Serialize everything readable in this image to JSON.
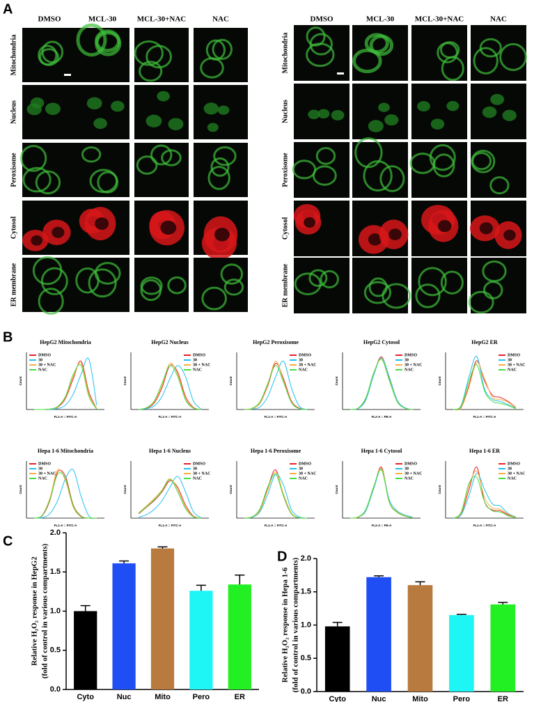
{
  "panel_labels": [
    "A",
    "B",
    "C",
    "D"
  ],
  "microscopy": [
    {
      "columns": [
        "DMSO",
        "MCL-30",
        "MCL-30+NAC",
        "NAC"
      ],
      "rows": [
        "Mitochondria",
        "Nucleus",
        "Peroxisome",
        "Cytosol",
        "ER membrane"
      ]
    },
    {
      "columns": [
        "DMSO",
        "MCL-30",
        "MCL-30+NAC",
        "NAC"
      ],
      "rows": [
        "Mitochondria",
        "Nucleus",
        "Peroxisome",
        "Cytosol",
        "ER membrane"
      ]
    }
  ],
  "chart_data": [
    {
      "type": "line",
      "title": "HepG2 Mitochondria",
      "xlabel": "FL1-A :: FITC-A",
      "ylabel": "Count",
      "legend": "upper left",
      "x": [
        2,
        2.5,
        3,
        3.5,
        4,
        4.5,
        5,
        5.5,
        6
      ],
      "xlim": [
        1.5,
        6.5
      ],
      "ylim": [
        0,
        130
      ],
      "series": [
        {
          "name": "DMSO",
          "color": "#e8202a",
          "values": [
            0,
            0,
            1,
            5,
            25,
            70,
            110,
            40,
            2
          ]
        },
        {
          "name": "30",
          "color": "#20c0f0",
          "values": [
            0,
            0,
            0,
            2,
            10,
            35,
            80,
            115,
            10
          ]
        },
        {
          "name": "30 + NAC",
          "color": "#f5b040",
          "values": [
            0,
            0,
            1,
            6,
            28,
            75,
            105,
            35,
            2
          ]
        },
        {
          "name": "NAC",
          "color": "#40e040",
          "values": [
            0,
            0,
            1,
            7,
            30,
            80,
            100,
            30,
            1
          ]
        }
      ]
    },
    {
      "type": "line",
      "title": "HepG2 Nucleus",
      "xlabel": "FL1-A :: FITC-A",
      "ylabel": "Count",
      "legend": "upper right",
      "x": [
        2,
        2.5,
        3,
        3.5,
        4,
        4.5,
        5,
        5.5,
        6
      ],
      "xlim": [
        1.5,
        6.5
      ],
      "ylim": [
        0,
        130
      ],
      "series": [
        {
          "name": "DMSO",
          "color": "#e8202a",
          "values": [
            0,
            3,
            15,
            50,
            100,
            85,
            30,
            5,
            0
          ]
        },
        {
          "name": "30",
          "color": "#20c0f0",
          "values": [
            0,
            2,
            8,
            30,
            70,
            100,
            75,
            20,
            1
          ]
        },
        {
          "name": "30 + NAC",
          "color": "#f5b040",
          "values": [
            0,
            4,
            18,
            55,
            105,
            80,
            25,
            4,
            0
          ]
        },
        {
          "name": "NAC",
          "color": "#40e040",
          "values": [
            0,
            4,
            20,
            60,
            100,
            75,
            22,
            3,
            0
          ]
        }
      ]
    },
    {
      "type": "line",
      "title": "HepG2 Peroxisome",
      "xlabel": "FL1-A :: FITC-A",
      "ylabel": "Count",
      "legend": "upper right",
      "x": [
        2,
        2.5,
        3,
        3.5,
        4,
        4.5,
        5,
        5.5,
        6
      ],
      "xlim": [
        1.5,
        6.5
      ],
      "ylim": [
        0,
        130
      ],
      "series": [
        {
          "name": "DMSO",
          "color": "#e8202a",
          "values": [
            0,
            2,
            15,
            55,
            105,
            70,
            20,
            3,
            0
          ]
        },
        {
          "name": "30",
          "color": "#20c0f0",
          "values": [
            0,
            1,
            6,
            30,
            75,
            110,
            50,
            8,
            0
          ]
        },
        {
          "name": "30 + NAC",
          "color": "#f5b040",
          "values": [
            0,
            2,
            16,
            58,
            110,
            65,
            18,
            2,
            0
          ]
        },
        {
          "name": "NAC",
          "color": "#40e040",
          "values": [
            0,
            3,
            18,
            60,
            100,
            62,
            16,
            2,
            0
          ]
        }
      ]
    },
    {
      "type": "line",
      "title": "HepG2 Cytosol",
      "xlabel": "FL2-A :: PE-A",
      "ylabel": "Count",
      "x": [
        2,
        2.5,
        3,
        3.5,
        4,
        4.5,
        5,
        5.5,
        6
      ],
      "xlim": [
        1.5,
        6.5
      ],
      "ylim": [
        0,
        130
      ],
      "series": [
        {
          "name": "DMSO",
          "color": "#e8202a",
          "values": [
            0,
            3,
            25,
            80,
            120,
            70,
            20,
            3,
            0
          ]
        },
        {
          "name": "30",
          "color": "#20c0f0",
          "values": [
            0,
            2,
            22,
            78,
            118,
            74,
            22,
            4,
            0
          ]
        },
        {
          "name": "30 + NAC",
          "color": "#f5b040",
          "values": [
            0,
            3,
            26,
            82,
            116,
            68,
            19,
            3,
            0
          ]
        },
        {
          "name": "NAC",
          "color": "#40e040",
          "values": [
            0,
            3,
            27,
            84,
            114,
            66,
            18,
            3,
            0
          ]
        }
      ]
    },
    {
      "type": "line",
      "title": "HepG2 ER",
      "xlabel": "FL1-A :: FITC-A",
      "ylabel": "Count",
      "legend": "upper right",
      "x": [
        2,
        2.5,
        3,
        3.5,
        4,
        4.5,
        5,
        5.5,
        6
      ],
      "xlim": [
        1.5,
        6.5
      ],
      "ylim": [
        0,
        140
      ],
      "series": [
        {
          "name": "DMSO",
          "color": "#e8202a",
          "values": [
            0,
            5,
            60,
            120,
            70,
            35,
            30,
            20,
            5
          ]
        },
        {
          "name": "30",
          "color": "#20c0f0",
          "values": [
            0,
            10,
            80,
            130,
            50,
            25,
            20,
            12,
            3
          ]
        },
        {
          "name": "30 + NAC",
          "color": "#f5b040",
          "values": [
            0,
            4,
            55,
            115,
            75,
            30,
            25,
            18,
            4
          ]
        },
        {
          "name": "NAC",
          "color": "#40e040",
          "values": [
            0,
            8,
            70,
            110,
            45,
            20,
            15,
            10,
            2
          ]
        }
      ]
    },
    {
      "type": "line",
      "title": "Hepa 1-6 Mitochondria",
      "xlabel": "FL1-A :: FITC-A",
      "ylabel": "Count",
      "legend": "upper left",
      "x": [
        2,
        2.5,
        3,
        3.5,
        4,
        4.5,
        5,
        5.5,
        6
      ],
      "xlim": [
        1.5,
        6.5
      ],
      "ylim": [
        0,
        130
      ],
      "series": [
        {
          "name": "DMSO",
          "color": "#e8202a",
          "values": [
            0,
            5,
            40,
            105,
            95,
            30,
            5,
            0,
            0
          ]
        },
        {
          "name": "30",
          "color": "#20c0f0",
          "values": [
            0,
            1,
            10,
            40,
            90,
            110,
            50,
            5,
            0
          ]
        },
        {
          "name": "30 + NAC",
          "color": "#f5b040",
          "values": [
            0,
            6,
            45,
            110,
            85,
            25,
            3,
            0,
            0
          ]
        },
        {
          "name": "NAC",
          "color": "#40e040",
          "values": [
            0,
            6,
            42,
            100,
            90,
            28,
            4,
            0,
            0
          ]
        }
      ]
    },
    {
      "type": "line",
      "title": "Hepa 1-6 Nucleus",
      "xlabel": "FL1-A :: FITC-A",
      "ylabel": "Count",
      "legend": "upper right",
      "x": [
        2,
        2.5,
        3,
        3.5,
        4,
        4.5,
        5,
        5.5,
        6
      ],
      "xlim": [
        1.5,
        6.5
      ],
      "ylim": [
        0,
        130
      ],
      "series": [
        {
          "name": "DMSO",
          "color": "#e8202a",
          "values": [
            10,
            25,
            40,
            60,
            85,
            70,
            30,
            5,
            0
          ]
        },
        {
          "name": "30",
          "color": "#20c0f0",
          "values": [
            2,
            8,
            20,
            40,
            70,
            95,
            60,
            15,
            1
          ]
        },
        {
          "name": "30 + NAC",
          "color": "#f5b040",
          "values": [
            12,
            28,
            45,
            65,
            90,
            65,
            25,
            4,
            0
          ]
        },
        {
          "name": "NAC",
          "color": "#40e040",
          "values": [
            11,
            26,
            42,
            62,
            88,
            60,
            22,
            3,
            0
          ]
        }
      ]
    },
    {
      "type": "line",
      "title": "Hepa 1-6 Peroxisome",
      "xlabel": "FL1-A :: FITC-A",
      "ylabel": "Count",
      "legend": "upper right",
      "x": [
        2,
        2.5,
        3,
        3.5,
        4,
        4.5,
        5,
        5.5,
        6
      ],
      "xlim": [
        1.5,
        6.5
      ],
      "ylim": [
        0,
        130
      ],
      "series": [
        {
          "name": "DMSO",
          "color": "#e8202a",
          "values": [
            0,
            3,
            20,
            70,
            110,
            50,
            10,
            1,
            0
          ]
        },
        {
          "name": "30",
          "color": "#20c0f0",
          "values": [
            0,
            2,
            15,
            55,
            100,
            75,
            20,
            3,
            0
          ]
        },
        {
          "name": "30 + NAC",
          "color": "#f5b040",
          "values": [
            0,
            3,
            18,
            65,
            105,
            55,
            12,
            1,
            0
          ]
        },
        {
          "name": "NAC",
          "color": "#40e040",
          "values": [
            0,
            3,
            22,
            72,
            100,
            50,
            10,
            1,
            0
          ]
        }
      ]
    },
    {
      "type": "line",
      "title": "Hepa 1-6 Cytosol",
      "xlabel": "FL2-A :: PE-A",
      "ylabel": "Count",
      "legend": "upper right",
      "x": [
        2,
        2.5,
        3,
        3.5,
        4,
        4.5,
        5,
        5.5,
        6
      ],
      "xlim": [
        1.5,
        6.5
      ],
      "ylim": [
        0,
        140
      ],
      "series": [
        {
          "name": "DMSO",
          "color": "#e8202a",
          "values": [
            0,
            2,
            20,
            75,
            125,
            40,
            15,
            5,
            1
          ]
        },
        {
          "name": "30",
          "color": "#20c0f0",
          "values": [
            0,
            2,
            18,
            72,
            120,
            45,
            18,
            8,
            2
          ]
        },
        {
          "name": "30 + NAC",
          "color": "#f5b040",
          "values": [
            0,
            2,
            21,
            76,
            122,
            40,
            16,
            6,
            1
          ]
        },
        {
          "name": "NAC",
          "color": "#40e040",
          "values": [
            0,
            3,
            22,
            78,
            118,
            38,
            14,
            5,
            1
          ]
        }
      ]
    },
    {
      "type": "line",
      "title": "Hepa 1-6 ER",
      "xlabel": "FL1-A :: FITC-A",
      "ylabel": "Count",
      "legend": "upper right",
      "x": [
        2,
        2.5,
        3,
        3.5,
        4,
        4.5,
        5,
        5.5,
        6
      ],
      "xlim": [
        1.5,
        6.5
      ],
      "ylim": [
        0,
        140
      ],
      "series": [
        {
          "name": "DMSO",
          "color": "#e8202a",
          "values": [
            0,
            10,
            70,
            125,
            40,
            20,
            18,
            8,
            2
          ]
        },
        {
          "name": "30",
          "color": "#20c0f0",
          "values": [
            0,
            8,
            55,
            110,
            70,
            35,
            30,
            12,
            3
          ]
        },
        {
          "name": "30 + NAC",
          "color": "#f5b040",
          "values": [
            0,
            12,
            80,
            115,
            50,
            25,
            22,
            10,
            2
          ]
        },
        {
          "name": "NAC",
          "color": "#40e040",
          "values": [
            0,
            15,
            85,
            100,
            40,
            18,
            15,
            6,
            1
          ]
        }
      ]
    },
    {
      "type": "bar",
      "ylabel": [
        "Relative H₂O₂ response in HepG2",
        "(fold of control in various compartments)"
      ],
      "categories": [
        "Cyto",
        "Nuc",
        "Mito",
        "Pero",
        "ER"
      ],
      "values": [
        1.0,
        1.61,
        1.8,
        1.26,
        1.34
      ],
      "errors": [
        0.07,
        0.03,
        0.02,
        0.07,
        0.12
      ],
      "colors": [
        "#000000",
        "#1f4ef5",
        "#b87a3e",
        "#1ef5f5",
        "#22f022"
      ],
      "ylim": [
        0,
        2
      ],
      "yticks": [
        {
          "value": 0,
          "label": "0.0"
        },
        {
          "value": 0.5,
          "label": "0.5"
        },
        {
          "value": 1,
          "label": "1.0"
        },
        {
          "value": 1.5,
          "label": "1.5"
        },
        {
          "value": 2,
          "label": "2.0"
        }
      ]
    },
    {
      "type": "bar",
      "ylabel": [
        "Relative H₂O₂ response in Hepa 1-6",
        "(fold of control in various compartments)"
      ],
      "categories": [
        "Cyto",
        "Nuc",
        "Mito",
        "Pero",
        "ER"
      ],
      "values": [
        0.98,
        1.72,
        1.6,
        1.15,
        1.31
      ],
      "errors": [
        0.06,
        0.02,
        0.05,
        0.01,
        0.03
      ],
      "colors": [
        "#000000",
        "#1f4ef5",
        "#b87a3e",
        "#1ef5f5",
        "#22f022"
      ],
      "ylim": [
        0,
        2
      ],
      "yticks": [
        {
          "value": 0,
          "label": "0.0"
        },
        {
          "value": 0.5,
          "label": "0.5"
        },
        {
          "value": 1,
          "label": "1.0"
        },
        {
          "value": 1.5,
          "label": "1.5"
        },
        {
          "value": 2,
          "label": "2.0"
        }
      ]
    }
  ]
}
